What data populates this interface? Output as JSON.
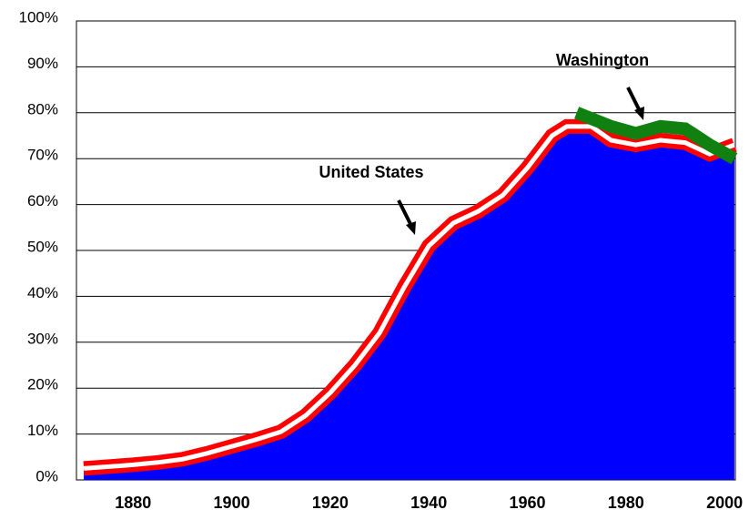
{
  "chart_data": {
    "type": "area",
    "annotations": [
      "United States",
      "Washington"
    ],
    "xlim": [
      1868.5,
      2002.2
    ],
    "xticks": [
      1880,
      1900,
      1920,
      1940,
      1960,
      1980,
      2000
    ],
    "ylim": [
      0,
      100
    ],
    "yticks": [
      {
        "value": 0,
        "label": "0%"
      },
      {
        "value": 10,
        "label": "10%"
      },
      {
        "value": 20,
        "label": "20%"
      },
      {
        "value": 30,
        "label": "30%"
      },
      {
        "value": 40,
        "label": "40%"
      },
      {
        "value": 50,
        "label": "50%"
      },
      {
        "value": 60,
        "label": "60%"
      },
      {
        "value": 70,
        "label": "70%"
      },
      {
        "value": 80,
        "label": "80%"
      },
      {
        "value": 90,
        "label": "90%"
      },
      {
        "value": 100,
        "label": "100%"
      }
    ],
    "grid": true,
    "series": [
      {
        "name": "United States",
        "color": "#ff0000",
        "fill": "#0000ff",
        "x": [
          1870,
          1880,
          1885,
          1890,
          1895,
          1900,
          1905,
          1910,
          1915,
          1920,
          1925,
          1930,
          1935,
          1940,
          1945,
          1950,
          1955,
          1960,
          1965,
          1968,
          1973,
          1977,
          1982,
          1987,
          1992,
          1997,
          2002
        ],
        "values": [
          2.5,
          3.3,
          3.8,
          4.5,
          5.8,
          7.3,
          8.8,
          10.5,
          14,
          19,
          25,
          32,
          42,
          51,
          56,
          58.5,
          62,
          68,
          75,
          77,
          77,
          74,
          73,
          74,
          73.5,
          71,
          73
        ]
      },
      {
        "name": "Washington",
        "color": "#108010",
        "x": [
          1970,
          1977,
          1982,
          1987,
          1992,
          1997,
          2002
        ],
        "values": [
          80,
          77,
          75.5,
          77,
          76.5,
          73,
          70
        ]
      }
    ]
  }
}
